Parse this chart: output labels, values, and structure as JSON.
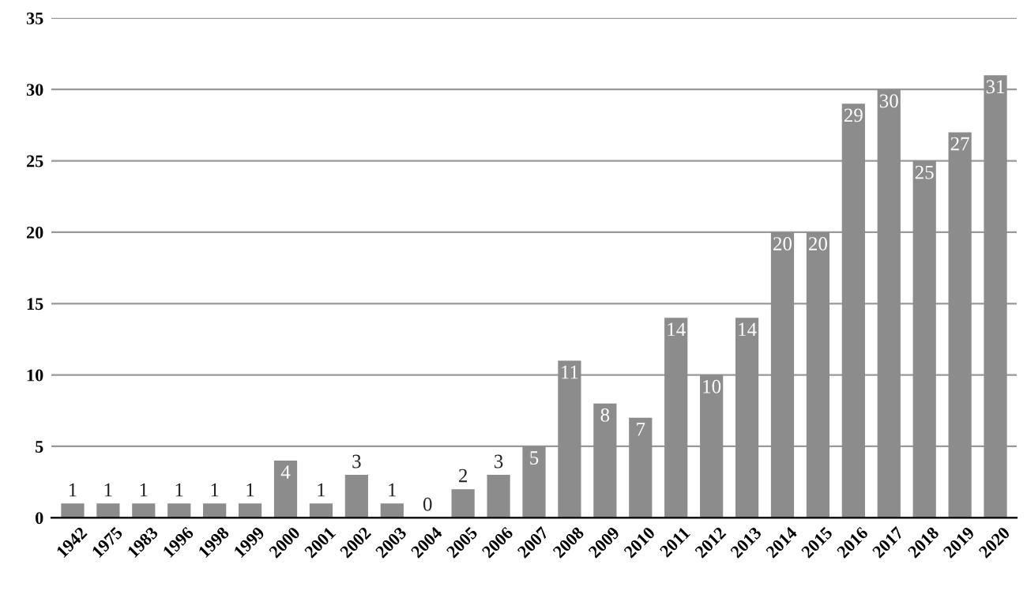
{
  "chart_data": {
    "type": "bar",
    "categories": [
      "1942",
      "1975",
      "1983",
      "1996",
      "1998",
      "1999",
      "2000",
      "2001",
      "2002",
      "2003",
      "2004",
      "2005",
      "2006",
      "2007",
      "2008",
      "2009",
      "2010",
      "2011",
      "2012",
      "2013",
      "2014",
      "2015",
      "2016",
      "2017",
      "2018",
      "2019",
      "2020"
    ],
    "values": [
      1,
      1,
      1,
      1,
      1,
      1,
      4,
      1,
      3,
      1,
      0,
      2,
      3,
      5,
      11,
      8,
      7,
      14,
      10,
      14,
      20,
      20,
      29,
      30,
      25,
      27,
      31
    ],
    "color": "#8c8c8c",
    "ylim": [
      0,
      35
    ],
    "yticks": [
      0,
      5,
      10,
      15,
      20,
      25,
      30,
      35
    ],
    "grid": "y",
    "data_labels": true
  }
}
